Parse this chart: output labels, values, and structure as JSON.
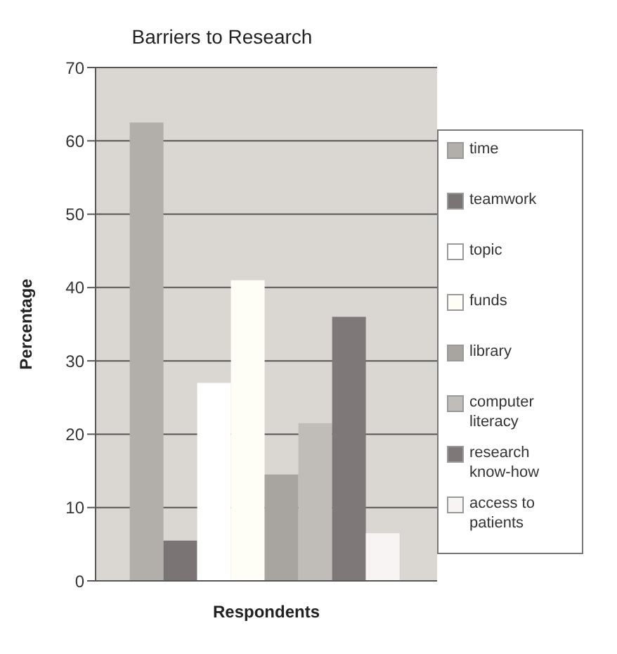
{
  "chart_data": {
    "type": "bar",
    "title": "Barriers to Research",
    "xlabel": "Respondents",
    "ylabel": "Percentage",
    "categories": [
      null
    ],
    "series": [
      {
        "name": "time",
        "color": "#b2aeaa",
        "values": [
          62.5
        ]
      },
      {
        "name": "teamwork",
        "color": "#7a7474",
        "values": [
          5.5
        ]
      },
      {
        "name": "topic",
        "color": "#ffffff",
        "values": [
          27
        ]
      },
      {
        "name": "funds",
        "color": "#fffef6",
        "values": [
          41
        ]
      },
      {
        "name": "library",
        "color": "#a8a4a0",
        "values": [
          14.5
        ]
      },
      {
        "name": "computer literacy",
        "color": "#c0bcb8",
        "values": [
          21.5
        ]
      },
      {
        "name": "research know-how",
        "color": "#7e7878",
        "values": [
          36
        ]
      },
      {
        "name": "access to patients",
        "color": "#f8f4f4",
        "values": [
          6.5
        ]
      }
    ],
    "ylim": [
      0,
      70
    ],
    "yticks": [
      0,
      10,
      20,
      30,
      40,
      50,
      60,
      70
    ],
    "grid": "y",
    "legend": "right"
  }
}
